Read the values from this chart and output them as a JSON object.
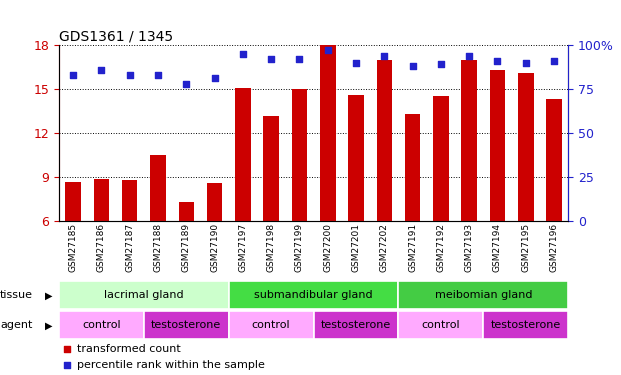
{
  "title": "GDS1361 / 1345",
  "samples": [
    "GSM27185",
    "GSM27186",
    "GSM27187",
    "GSM27188",
    "GSM27189",
    "GSM27190",
    "GSM27197",
    "GSM27198",
    "GSM27199",
    "GSM27200",
    "GSM27201",
    "GSM27202",
    "GSM27191",
    "GSM27192",
    "GSM27193",
    "GSM27194",
    "GSM27195",
    "GSM27196"
  ],
  "bar_values": [
    8.7,
    8.9,
    8.8,
    10.5,
    7.3,
    8.6,
    15.1,
    13.2,
    15.0,
    18.0,
    14.6,
    17.0,
    13.3,
    14.5,
    17.0,
    16.3,
    16.1,
    14.3
  ],
  "dot_values": [
    83,
    86,
    83,
    83,
    78,
    81,
    95,
    92,
    92,
    97,
    90,
    94,
    88,
    89,
    94,
    91,
    90,
    91
  ],
  "bar_color": "#cc0000",
  "dot_color": "#2222cc",
  "ylim_left": [
    6,
    18
  ],
  "ylim_right": [
    0,
    100
  ],
  "yticks_left": [
    6,
    9,
    12,
    15,
    18
  ],
  "yticks_right": [
    0,
    25,
    50,
    75,
    100
  ],
  "ytick_labels_right": [
    "0",
    "25",
    "50",
    "75",
    "100%"
  ],
  "tissue_groups": [
    {
      "label": "lacrimal gland",
      "start": 0,
      "end": 6,
      "color": "#ccffcc"
    },
    {
      "label": "submandibular gland",
      "start": 6,
      "end": 12,
      "color": "#44dd44"
    },
    {
      "label": "meibomian gland",
      "start": 12,
      "end": 18,
      "color": "#44cc44"
    }
  ],
  "agent_groups": [
    {
      "label": "control",
      "start": 0,
      "end": 3,
      "color": "#ffaaff"
    },
    {
      "label": "testosterone",
      "start": 3,
      "end": 6,
      "color": "#cc33cc"
    },
    {
      "label": "control",
      "start": 6,
      "end": 9,
      "color": "#ffaaff"
    },
    {
      "label": "testosterone",
      "start": 9,
      "end": 12,
      "color": "#cc33cc"
    },
    {
      "label": "control",
      "start": 12,
      "end": 15,
      "color": "#ffaaff"
    },
    {
      "label": "testosterone",
      "start": 15,
      "end": 18,
      "color": "#cc33cc"
    }
  ],
  "legend_items": [
    {
      "label": "transformed count",
      "color": "#cc0000",
      "marker": "s"
    },
    {
      "label": "percentile rank within the sample",
      "color": "#2222cc",
      "marker": "s"
    }
  ],
  "bar_width": 0.55,
  "background_color": "#ffffff",
  "plot_bg_color": "#ffffff",
  "tick_label_color_left": "#cc0000",
  "tick_label_color_right": "#2222cc",
  "xlabel_bg": "#cccccc"
}
